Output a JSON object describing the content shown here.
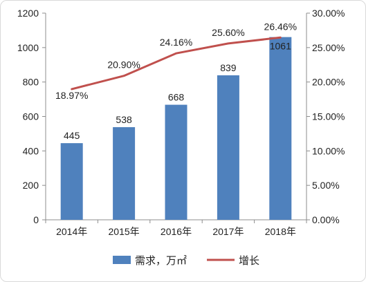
{
  "chart_data": {
    "type": "bar+line",
    "categories": [
      "2014年",
      "2015年",
      "2016年",
      "2017年",
      "2018年"
    ],
    "series": [
      {
        "name": "需求，万㎡",
        "type": "bar",
        "axis": "left",
        "values": [
          445,
          538,
          668,
          839,
          1061
        ],
        "labels": [
          "445",
          "538",
          "668",
          "839",
          "1061"
        ],
        "color": "#4f81bd"
      },
      {
        "name": "增长",
        "type": "line",
        "axis": "right",
        "values": [
          18.97,
          20.9,
          24.16,
          25.6,
          26.46
        ],
        "labels": [
          "18.97%",
          "20.90%",
          "24.16%",
          "25.60%",
          "26.46%"
        ],
        "color": "#c0504d"
      }
    ],
    "y_left": {
      "min": 0,
      "max": 1200,
      "ticks": [
        0,
        200,
        400,
        600,
        800,
        1000,
        1200
      ],
      "tick_labels": [
        "0",
        "200",
        "400",
        "600",
        "800",
        "1000",
        "1200"
      ]
    },
    "y_right": {
      "min": 0,
      "max": 30,
      "ticks": [
        0,
        5,
        10,
        15,
        20,
        25,
        30
      ],
      "tick_labels": [
        "0.00%",
        "5.00%",
        "10.00%",
        "15.00%",
        "20.00%",
        "25.00%",
        "30.00%"
      ]
    },
    "grid": false,
    "legend_position": "bottom"
  }
}
